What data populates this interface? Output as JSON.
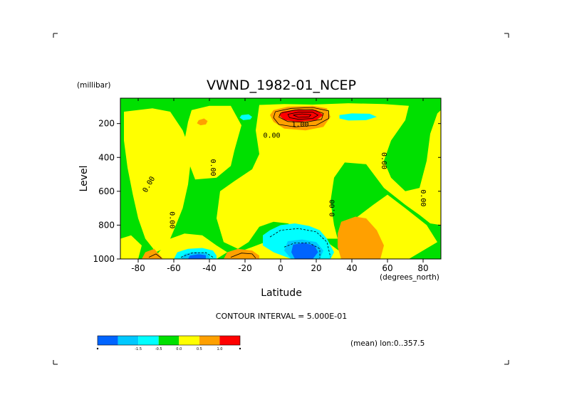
{
  "chart_data": {
    "type": "heatmap",
    "title": "VWND_1982-01_NCEP",
    "xlabel": "Latitude",
    "ylabel": "Level",
    "x_unit": "(degrees_north)",
    "y_unit": "(millibar)",
    "xlim": [
      -90,
      90
    ],
    "ylim": [
      1000,
      50
    ],
    "x_ticks": [
      "-80",
      "-60",
      "-40",
      "-20",
      "0",
      "20",
      "40",
      "60",
      "80"
    ],
    "x_tick_values": [
      -80,
      -60,
      -40,
      -20,
      0,
      20,
      40,
      60,
      80
    ],
    "y_ticks": [
      "200",
      "400",
      "600",
      "800",
      "1000"
    ],
    "y_tick_values": [
      200,
      400,
      600,
      800,
      1000
    ],
    "contour_interval_text": "CONTOUR INTERVAL = 5.000E-01",
    "subtitle": "(mean) lon:0..357.5",
    "contour_labels": [
      {
        "text": "0.00",
        "lat": -74,
        "lev": 560,
        "rot": -60
      },
      {
        "text": "0.00",
        "lat": -61,
        "lev": 770,
        "rot": 90
      },
      {
        "text": "0.00",
        "lat": -38,
        "lev": 460,
        "rot": 90
      },
      {
        "text": "0.00",
        "lat": -5,
        "lev": 270,
        "rot": 0
      },
      {
        "text": "1.00",
        "lat": 11,
        "lev": 205,
        "rot": 0
      },
      {
        "text": "0.00",
        "lat": 29,
        "lev": 700,
        "rot": -90
      },
      {
        "text": "0.00",
        "lat": 58,
        "lev": 420,
        "rot": 90
      },
      {
        "text": "0.00",
        "lat": 80,
        "lev": 640,
        "rot": 90
      }
    ],
    "colorbar": {
      "colors": [
        "#0064ff",
        "#00c8ff",
        "#00ffff",
        "#00e000",
        "#ffff00",
        "#ffa000",
        "#ff0000"
      ],
      "labels": [
        "-1.5",
        "-0.5",
        "0.0",
        "0.5",
        "1.0"
      ]
    },
    "regions": [
      {
        "color": "#00e000",
        "poly": [
          [
            -90,
            50
          ],
          [
            90,
            50
          ],
          [
            90,
            1000
          ],
          [
            -90,
            1000
          ]
        ]
      },
      {
        "color": "#ffff00",
        "poly": [
          [
            -88,
            130
          ],
          [
            -72,
            110
          ],
          [
            -62,
            130
          ],
          [
            -55,
            240
          ],
          [
            -50,
            380
          ],
          [
            -52,
            560
          ],
          [
            -55,
            700
          ],
          [
            -60,
            830
          ],
          [
            -64,
            930
          ],
          [
            -70,
            960
          ],
          [
            -76,
            880
          ],
          [
            -80,
            760
          ],
          [
            -83,
            620
          ],
          [
            -86,
            460
          ],
          [
            -88,
            300
          ]
        ]
      },
      {
        "color": "#ffff00",
        "poly": [
          [
            -50,
            120
          ],
          [
            -40,
            95
          ],
          [
            -28,
            95
          ],
          [
            -22,
            210
          ],
          [
            -26,
            360
          ],
          [
            -28,
            450
          ],
          [
            -36,
            520
          ],
          [
            -48,
            530
          ],
          [
            -52,
            420
          ],
          [
            -54,
            300
          ],
          [
            -52,
            190
          ]
        ]
      },
      {
        "color": "#ffff00",
        "poly": [
          [
            -12,
            90
          ],
          [
            2,
            85
          ],
          [
            18,
            88
          ],
          [
            38,
            80
          ],
          [
            58,
            85
          ],
          [
            72,
            95
          ],
          [
            70,
            180
          ],
          [
            62,
            300
          ],
          [
            58,
            420
          ],
          [
            62,
            520
          ],
          [
            70,
            600
          ],
          [
            78,
            580
          ],
          [
            82,
            420
          ],
          [
            84,
            260
          ],
          [
            88,
            140
          ],
          [
            90,
            120
          ],
          [
            90,
            800
          ],
          [
            84,
            790
          ],
          [
            78,
            740
          ],
          [
            70,
            680
          ],
          [
            58,
            580
          ],
          [
            48,
            440
          ],
          [
            36,
            430
          ],
          [
            30,
            520
          ],
          [
            28,
            660
          ],
          [
            30,
            800
          ],
          [
            32,
            880
          ],
          [
            22,
            880
          ],
          [
            14,
            840
          ],
          [
            4,
            790
          ],
          [
            -4,
            780
          ],
          [
            -12,
            810
          ],
          [
            -18,
            900
          ],
          [
            -24,
            940
          ],
          [
            -32,
            900
          ],
          [
            -36,
            760
          ],
          [
            -34,
            600
          ],
          [
            -26,
            540
          ],
          [
            -16,
            470
          ],
          [
            -12,
            380
          ],
          [
            -14,
            240
          ]
        ]
      },
      {
        "color": "#ffff00",
        "poly": [
          [
            60,
            620
          ],
          [
            70,
            700
          ],
          [
            82,
            800
          ],
          [
            88,
            900
          ],
          [
            72,
            1000
          ],
          [
            50,
            1000
          ],
          [
            40,
            980
          ],
          [
            36,
            880
          ],
          [
            42,
            760
          ],
          [
            52,
            680
          ]
        ]
      },
      {
        "color": "#ffff00",
        "poly": [
          [
            -62,
            880
          ],
          [
            -54,
            850
          ],
          [
            -44,
            860
          ],
          [
            -36,
            920
          ],
          [
            -30,
            960
          ],
          [
            -36,
            1000
          ],
          [
            -66,
            1000
          ],
          [
            -70,
            980
          ]
        ]
      },
      {
        "color": "#ffff00",
        "poly": [
          [
            -24,
            960
          ],
          [
            -16,
            930
          ],
          [
            -6,
            890
          ],
          [
            2,
            860
          ],
          [
            14,
            860
          ],
          [
            26,
            900
          ],
          [
            34,
            960
          ],
          [
            38,
            1000
          ],
          [
            -30,
            1000
          ]
        ]
      },
      {
        "color": "#ffff00",
        "poly": [
          [
            -90,
            880
          ],
          [
            -84,
            860
          ],
          [
            -78,
            920
          ],
          [
            -80,
            1000
          ],
          [
            -90,
            1000
          ]
        ]
      },
      {
        "color": "#ffa000",
        "poly": [
          [
            -4,
            120
          ],
          [
            4,
            100
          ],
          [
            18,
            95
          ],
          [
            26,
            110
          ],
          [
            28,
            160
          ],
          [
            24,
            220
          ],
          [
            14,
            240
          ],
          [
            2,
            230
          ],
          [
            -4,
            190
          ],
          [
            -6,
            150
          ]
        ]
      },
      {
        "color": "#ff0000",
        "poly": [
          [
            1,
            130
          ],
          [
            10,
            115
          ],
          [
            20,
            120
          ],
          [
            24,
            150
          ],
          [
            20,
            180
          ],
          [
            10,
            190
          ],
          [
            2,
            180
          ],
          [
            -1,
            150
          ]
        ]
      },
      {
        "color": "#ffa000",
        "poly": [
          [
            -46,
            180
          ],
          [
            -43,
            170
          ],
          [
            -41,
            185
          ],
          [
            -42,
            205
          ],
          [
            -45,
            210
          ],
          [
            -47,
            198
          ]
        ]
      },
      {
        "color": "#ffa000",
        "poly": [
          [
            34,
            780
          ],
          [
            42,
            750
          ],
          [
            48,
            760
          ],
          [
            54,
            830
          ],
          [
            58,
            920
          ],
          [
            56,
            1000
          ],
          [
            34,
            1000
          ],
          [
            32,
            930
          ],
          [
            32,
            850
          ]
        ]
      },
      {
        "color": "#ffa000",
        "poly": [
          [
            -76,
            960
          ],
          [
            -71,
            940
          ],
          0,
          [
            -66,
            1000
          ],
          [
            -78,
            1000
          ]
        ]
      },
      {
        "color": "#ffa000",
        "poly": [
          [
            -30,
            960
          ],
          [
            -24,
            940
          ],
          [
            -16,
            950
          ],
          [
            -12,
            980
          ],
          [
            -12,
            1000
          ],
          [
            -32,
            1000
          ]
        ]
      },
      {
        "color": "#00ffff",
        "poly": [
          [
            -22,
            150
          ],
          [
            -18,
            145
          ],
          [
            -16,
            160
          ],
          [
            -17,
            175
          ],
          [
            -21,
            180
          ],
          [
            -23,
            165
          ]
        ]
      },
      {
        "color": "#00ffff",
        "poly": [
          [
            33,
            150
          ],
          [
            40,
            140
          ],
          [
            50,
            142
          ],
          [
            54,
            160
          ],
          [
            48,
            180
          ],
          [
            38,
            182
          ],
          [
            33,
            170
          ]
        ]
      },
      {
        "color": "#00ffff",
        "poly": [
          [
            -10,
            860
          ],
          [
            -6,
            830
          ],
          [
            0,
            800
          ],
          [
            8,
            790
          ],
          [
            16,
            805
          ],
          [
            22,
            830
          ],
          [
            26,
            880
          ],
          [
            30,
            960
          ],
          [
            28,
            1000
          ],
          [
            6,
            1000
          ],
          [
            -4,
            960
          ],
          [
            -10,
            920
          ]
        ]
      },
      {
        "color": "#00c8ff",
        "poly": [
          [
            4,
            895
          ],
          [
            12,
            885
          ],
          [
            20,
            900
          ],
          [
            24,
            950
          ],
          [
            22,
            1000
          ],
          [
            6,
            1000
          ],
          [
            2,
            950
          ]
        ]
      },
      {
        "color": "#0064ff",
        "poly": [
          [
            7,
            915
          ],
          [
            13,
            905
          ],
          [
            19,
            920
          ],
          [
            21,
            960
          ],
          [
            18,
            1000
          ],
          [
            8,
            1000
          ],
          [
            6,
            960
          ]
        ]
      },
      {
        "color": "#00ffff",
        "poly": [
          [
            -58,
            960
          ],
          [
            -52,
            940
          ],
          [
            -44,
            935
          ],
          [
            -38,
            950
          ],
          [
            -36,
            980
          ],
          [
            -36,
            1000
          ],
          [
            -60,
            1000
          ]
        ]
      },
      {
        "color": "#00c8ff",
        "poly": [
          [
            -54,
            970
          ],
          [
            -48,
            958
          ],
          [
            -42,
            962
          ],
          [
            -40,
            985
          ],
          [
            -40,
            1000
          ],
          [
            -56,
            1000
          ]
        ]
      },
      {
        "color": "#0064ff",
        "poly": [
          [
            -51,
            980
          ],
          [
            -46,
            972
          ],
          [
            -42,
            978
          ],
          [
            -42,
            1000
          ],
          [
            -52,
            1000
          ]
        ]
      }
    ],
    "contours": [
      {
        "dash": false,
        "path": [
          [
            -3,
            130
          ],
          [
            6,
            110
          ],
          [
            18,
            105
          ],
          [
            27,
            125
          ],
          [
            27,
            170
          ],
          [
            20,
            210
          ],
          [
            8,
            220
          ],
          [
            -1,
            205
          ],
          [
            -4,
            165
          ],
          [
            -3,
            130
          ]
        ]
      },
      {
        "dash": false,
        "path": [
          [
            0,
            138
          ],
          [
            8,
            120
          ],
          [
            18,
            118
          ],
          [
            24,
            140
          ],
          [
            23,
            175
          ],
          [
            14,
            192
          ],
          [
            4,
            188
          ],
          [
            -1,
            162
          ],
          [
            0,
            138
          ]
        ]
      },
      {
        "dash": false,
        "path": [
          [
            4,
            145
          ],
          [
            10,
            133
          ],
          [
            18,
            133
          ],
          [
            21,
            150
          ],
          [
            18,
            170
          ],
          [
            10,
            175
          ],
          [
            5,
            165
          ],
          [
            4,
            145
          ]
        ]
      },
      {
        "dash": false,
        "path": [
          [
            7,
            150
          ],
          [
            12,
            143
          ],
          [
            17,
            148
          ],
          [
            16,
            160
          ],
          [
            10,
            163
          ],
          [
            7,
            150
          ]
        ]
      },
      {
        "dash": true,
        "path": [
          [
            -6,
            870
          ],
          [
            0,
            830
          ],
          [
            10,
            820
          ],
          [
            20,
            840
          ],
          [
            26,
            900
          ],
          [
            28,
            990
          ]
        ]
      },
      {
        "dash": true,
        "path": [
          [
            2,
            930
          ],
          [
            8,
            905
          ],
          [
            16,
            905
          ],
          [
            22,
            940
          ],
          [
            22,
            995
          ]
        ]
      },
      {
        "dash": true,
        "path": [
          [
            -56,
            990
          ],
          [
            -50,
            965
          ],
          [
            -42,
            962
          ],
          [
            -38,
            990
          ]
        ]
      },
      {
        "dash": false,
        "path": [
          [
            -28,
            990
          ],
          [
            -22,
            965
          ],
          [
            -16,
            970
          ],
          [
            -14,
            995
          ]
        ]
      },
      {
        "dash": false,
        "path": [
          [
            -74,
            990
          ],
          [
            -70,
            970
          ],
          [
            -67,
            995
          ]
        ]
      }
    ]
  }
}
